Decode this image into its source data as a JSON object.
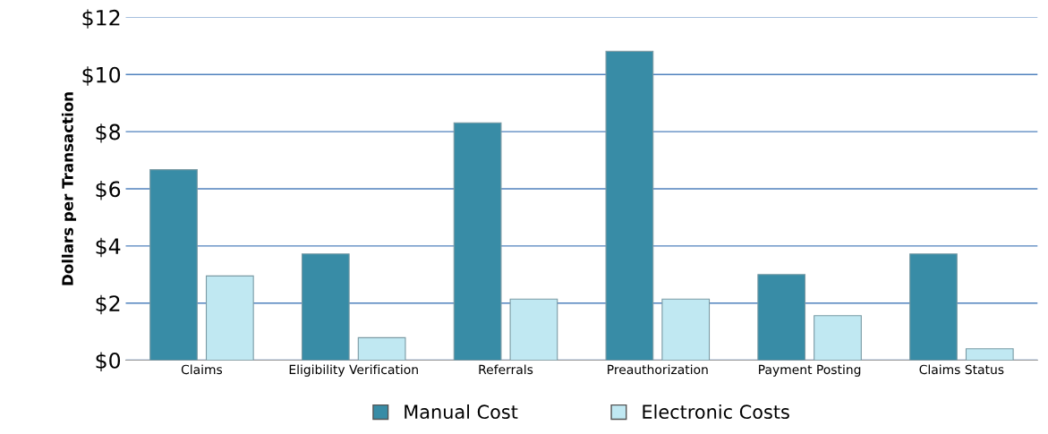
{
  "chart_data": {
    "type": "bar",
    "ylabel": "Dollars per Transaction",
    "categories": [
      "Claims",
      "Eligibility Verification",
      "Referrals",
      "Preauthorization",
      "Payment Posting",
      "Claims Status"
    ],
    "series": [
      {
        "name": "Manual Cost",
        "color": "#388ca6",
        "values": [
          6.67,
          3.72,
          8.31,
          10.81,
          3.0,
          3.72
        ]
      },
      {
        "name": "Electronic Costs",
        "color": "#c0e8f2",
        "values": [
          2.95,
          0.79,
          2.14,
          2.14,
          1.56,
          0.4
        ]
      }
    ],
    "ylim": [
      0,
      12
    ],
    "yticks": [
      {
        "value": 0,
        "label": "$0"
      },
      {
        "value": 2,
        "label": "$2"
      },
      {
        "value": 4,
        "label": "$4"
      },
      {
        "value": 6,
        "label": "$6"
      },
      {
        "value": 8,
        "label": "$8"
      },
      {
        "value": 10,
        "label": "$10"
      },
      {
        "value": 12,
        "label": "$12"
      }
    ],
    "grid": "y",
    "legend": "bottom"
  }
}
